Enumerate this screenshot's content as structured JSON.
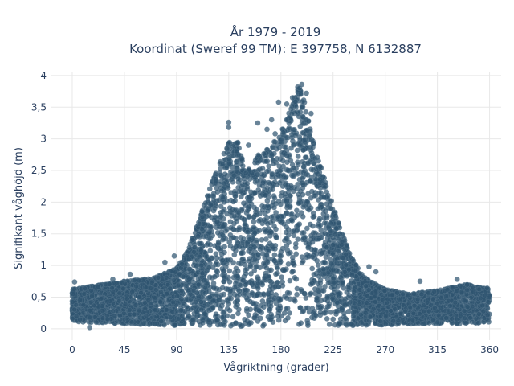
{
  "chart_data": {
    "type": "scatter",
    "title": "År 1979 - 2019",
    "subtitle": "Koordinat (Sweref 99 TM): E 397758, N 6132887",
    "xlabel": "Vågriktning (grader)",
    "ylabel": "Signifikant våghöjd (m)",
    "xlim": [
      -18,
      370
    ],
    "ylim": [
      -0.18,
      4.05
    ],
    "xticks": [
      0,
      45,
      90,
      135,
      180,
      225,
      270,
      315,
      360
    ],
    "xtick_labels": [
      "0",
      "45",
      "90",
      "135",
      "180",
      "225",
      "270",
      "315",
      "360"
    ],
    "yticks": [
      0,
      0.5,
      1,
      1.5,
      2,
      2.5,
      3,
      3.5,
      4
    ],
    "ytick_labels": [
      "0",
      "0,5",
      "1",
      "1,5",
      "2",
      "2,5",
      "3",
      "3,5",
      "4"
    ],
    "grid": true,
    "legend": "none",
    "marker_color": "#2f5570",
    "envelope": {
      "x": [
        0,
        20,
        45,
        70,
        90,
        100,
        110,
        120,
        128,
        135,
        142,
        150,
        160,
        170,
        180,
        190,
        195,
        200,
        210,
        220,
        230,
        240,
        250,
        260,
        270,
        290,
        315,
        340,
        360
      ],
      "upper": [
        0.62,
        0.68,
        0.75,
        0.8,
        0.95,
        1.25,
        1.75,
        2.3,
        2.65,
        2.95,
        3.0,
        2.45,
        2.75,
        2.85,
        3.1,
        3.55,
        3.85,
        3.6,
        2.8,
        2.25,
        1.65,
        1.15,
        0.85,
        0.72,
        0.62,
        0.55,
        0.6,
        0.7,
        0.62
      ],
      "lower": [
        0.1,
        0.1,
        0.08,
        0.06,
        0.05,
        0.05,
        0.05,
        0.04,
        0.04,
        0.04,
        0.04,
        0.04,
        0.04,
        0.04,
        0.04,
        0.04,
        0.04,
        0.04,
        0.04,
        0.05,
        0.05,
        0.05,
        0.05,
        0.06,
        0.06,
        0.07,
        0.08,
        0.08,
        0.1
      ]
    },
    "outliers": [
      {
        "x": 135,
        "y": 3.26
      },
      {
        "x": 135,
        "y": 3.18
      },
      {
        "x": 152,
        "y": 2.9
      },
      {
        "x": 160,
        "y": 3.25
      },
      {
        "x": 168,
        "y": 3.15
      },
      {
        "x": 172,
        "y": 3.3
      },
      {
        "x": 175,
        "y": 3.08
      },
      {
        "x": 178,
        "y": 3.58
      },
      {
        "x": 185,
        "y": 3.55
      },
      {
        "x": 190,
        "y": 3.65
      },
      {
        "x": 196,
        "y": 3.8
      },
      {
        "x": 198,
        "y": 3.86
      },
      {
        "x": 202,
        "y": 3.72
      },
      {
        "x": 206,
        "y": 3.4
      },
      {
        "x": 88,
        "y": 1.15
      },
      {
        "x": 80,
        "y": 1.05
      },
      {
        "x": 256,
        "y": 0.98
      },
      {
        "x": 262,
        "y": 0.9
      },
      {
        "x": 300,
        "y": 0.75
      },
      {
        "x": 332,
        "y": 0.78
      },
      {
        "x": 50,
        "y": 0.86
      },
      {
        "x": 35,
        "y": 0.78
      },
      {
        "x": 2,
        "y": 0.74
      },
      {
        "x": 15,
        "y": 0.02
      },
      {
        "x": 358,
        "y": 0.64
      }
    ]
  }
}
